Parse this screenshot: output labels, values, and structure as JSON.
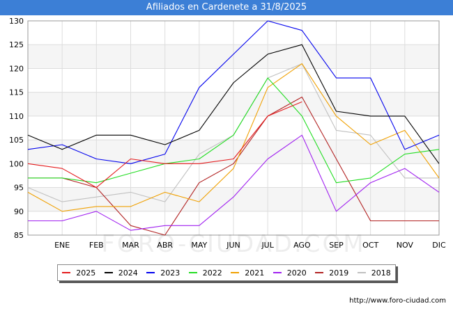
{
  "header": {
    "title": "Afiliados en Cardenete a 31/8/2025"
  },
  "source": "http://www.foro-ciudad.com",
  "watermark": "FORO-CIUDAD.COM",
  "chart_data": {
    "type": "line",
    "title": "Afiliados en Cardenete a 31/8/2025",
    "xlabel": "",
    "ylabel": "",
    "categories": [
      "",
      "ENE",
      "FEB",
      "MAR",
      "ABR",
      "MAY",
      "JUN",
      "JUL",
      "AGO",
      "SEP",
      "OCT",
      "NOV",
      "DIC"
    ],
    "ylim": [
      85,
      130
    ],
    "yticks": [
      85,
      90,
      95,
      100,
      105,
      110,
      115,
      120,
      125,
      130
    ],
    "grid": true,
    "legend_position": "bottom",
    "series": [
      {
        "name": "2025",
        "color": "#e41a1c",
        "values": [
          100,
          99,
          95,
          101,
          100,
          100,
          101,
          110,
          113,
          null,
          null,
          null,
          null
        ]
      },
      {
        "name": "2024",
        "color": "#000000",
        "values": [
          106,
          103,
          106,
          106,
          104,
          107,
          117,
          123,
          125,
          111,
          110,
          110,
          100
        ]
      },
      {
        "name": "2023",
        "color": "#0000ee",
        "values": [
          103,
          104,
          101,
          100,
          102,
          116,
          123,
          130,
          128,
          118,
          118,
          103,
          106
        ]
      },
      {
        "name": "2022",
        "color": "#22dd22",
        "values": [
          97,
          97,
          96,
          98,
          100,
          101,
          106,
          118,
          110,
          96,
          97,
          102,
          103
        ]
      },
      {
        "name": "2021",
        "color": "#f0a000",
        "values": [
          94,
          90,
          91,
          91,
          94,
          92,
          99,
          116,
          121,
          110,
          104,
          107,
          97
        ]
      },
      {
        "name": "2020",
        "color": "#a020f0",
        "values": [
          88,
          88,
          90,
          86,
          87,
          87,
          93,
          101,
          106,
          90,
          96,
          99,
          94
        ]
      },
      {
        "name": "2019",
        "color": "#b22222",
        "values": [
          97,
          97,
          95,
          87,
          85,
          96,
          100,
          110,
          114,
          101,
          88,
          88,
          88
        ]
      },
      {
        "name": "2018",
        "color": "#c0c0c0",
        "values": [
          95,
          92,
          93,
          94,
          92,
          102,
          106,
          118,
          121,
          107,
          106,
          97,
          97
        ]
      }
    ]
  }
}
